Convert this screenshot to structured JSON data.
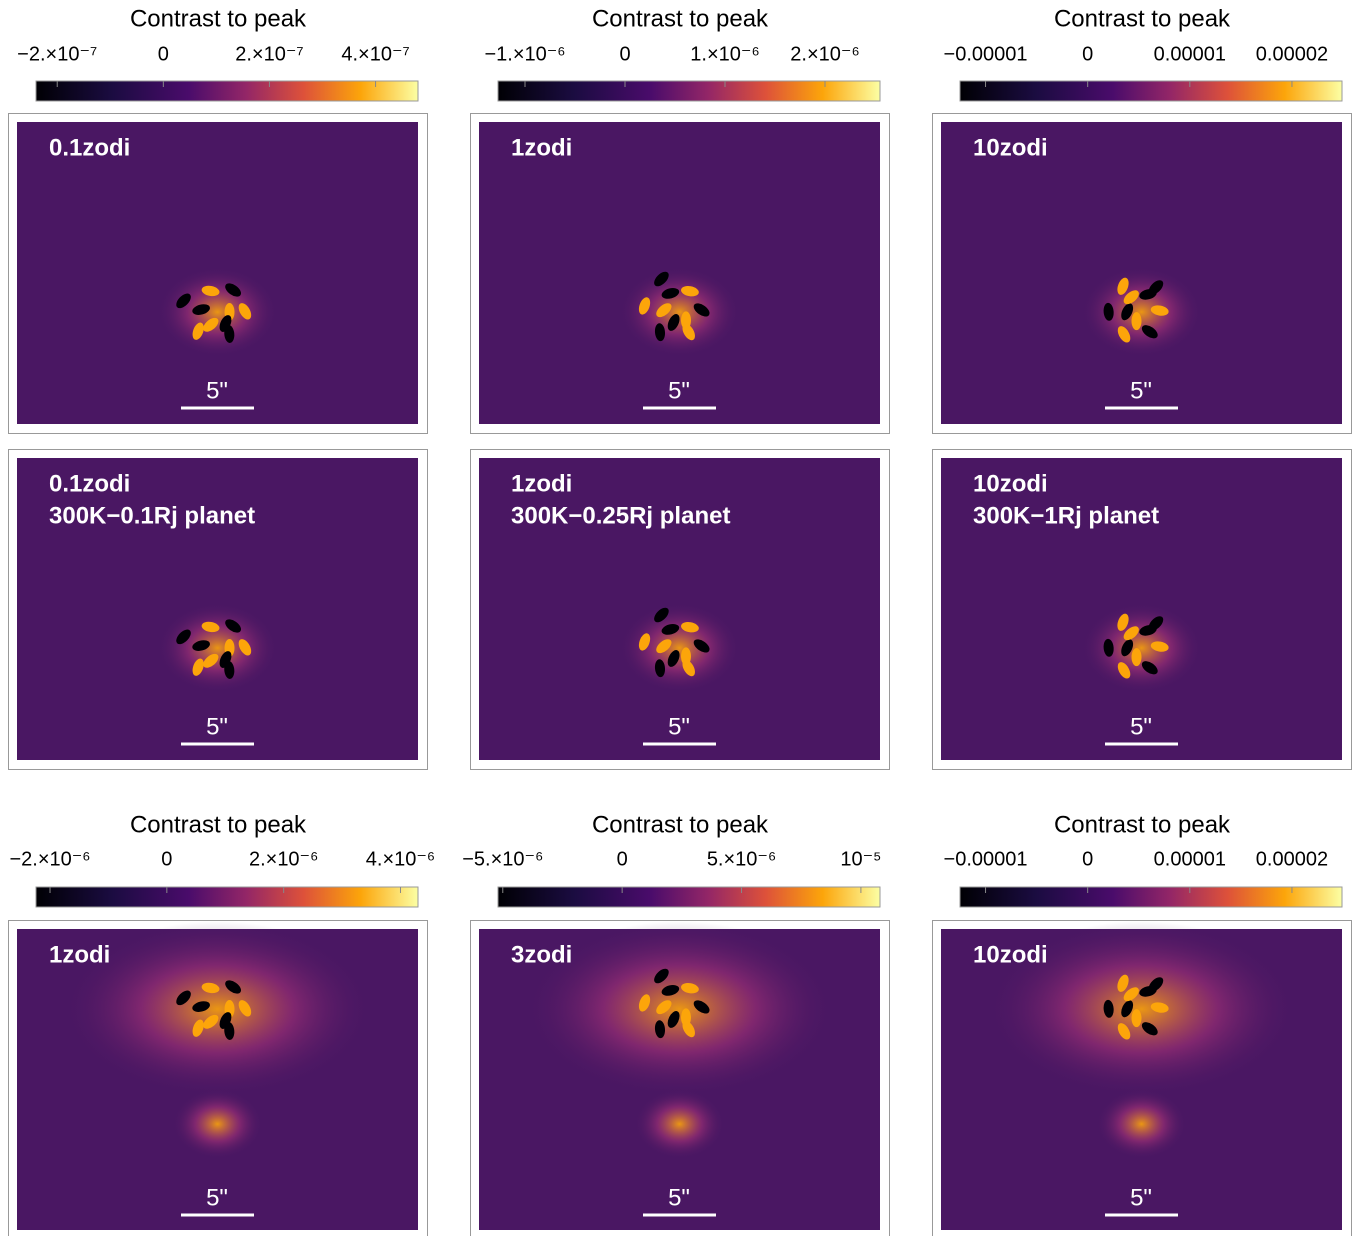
{
  "colorbars": [
    {
      "title": "Contrast to peak",
      "range": [
        -2.4e-07,
        4.8e-07
      ],
      "ticks": [
        {
          "value": -2e-07,
          "label": "−2.×10⁻⁷"
        },
        0,
        {
          "value": 2e-07,
          "label": "2.×10⁻⁷"
        },
        {
          "value": 4e-07,
          "label": "4.×10⁻⁷"
        }
      ]
    },
    {
      "title": "Contrast to peak",
      "range": [
        -1.27e-06,
        2.55e-06
      ],
      "ticks": [
        {
          "value": -1e-06,
          "label": "−1.×10⁻⁶"
        },
        0,
        {
          "value": 1e-06,
          "label": "1.×10⁻⁶"
        },
        {
          "value": 2e-06,
          "label": "2.×10⁻⁶"
        }
      ]
    },
    {
      "title": "Contrast to peak",
      "range": [
        -1.25e-05,
        2.49e-05
      ],
      "ticks": [
        {
          "value": -1e-05,
          "label": "−0.00001"
        },
        0,
        {
          "value": 1e-05,
          "label": "0.00001"
        },
        {
          "value": 2e-05,
          "label": "0.00002"
        }
      ]
    },
    {
      "title": "Contrast to peak",
      "range": [
        -2.24e-06,
        4.3e-06
      ],
      "ticks": [
        {
          "value": -2e-06,
          "label": "−2.×10⁻⁶"
        },
        0,
        {
          "value": 2e-06,
          "label": "2.×10⁻⁶"
        },
        {
          "value": 4e-06,
          "label": "4.×10⁻⁶"
        }
      ]
    },
    {
      "title": "Contrast to peak",
      "range": [
        -5.2e-06,
        1.08e-05
      ],
      "ticks": [
        {
          "value": -5e-06,
          "label": "−5.×10⁻⁶"
        },
        0,
        {
          "value": 5e-06,
          "label": "5.×10⁻⁶"
        },
        {
          "value": 1e-05,
          "label": "10⁻⁵"
        }
      ]
    },
    {
      "title": "Contrast to peak",
      "range": [
        -1.25e-05,
        2.49e-05
      ],
      "ticks": [
        {
          "value": -1e-05,
          "label": "−0.00001"
        },
        0,
        {
          "value": 1e-05,
          "label": "0.00001"
        },
        {
          "value": 2e-05,
          "label": "0.00002"
        }
      ]
    }
  ],
  "panels": [
    {
      "lines": [
        "0.1zodi"
      ],
      "scale_label": "5\""
    },
    {
      "lines": [
        "1zodi"
      ],
      "scale_label": "5\""
    },
    {
      "lines": [
        "10zodi"
      ],
      "scale_label": "5\""
    },
    {
      "lines": [
        "0.1zodi",
        "300K−0.1Rj planet"
      ],
      "scale_label": "5\""
    },
    {
      "lines": [
        "1zodi",
        "300K−0.25Rj planet"
      ],
      "scale_label": "5\""
    },
    {
      "lines": [
        "10zodi",
        "300K−1Rj planet"
      ],
      "scale_label": "5\""
    },
    {
      "lines": [
        "1zodi"
      ],
      "scale_label": "5\""
    },
    {
      "lines": [
        "3zodi"
      ],
      "scale_label": "5\""
    },
    {
      "lines": [
        "10zodi"
      ],
      "scale_label": "5\""
    }
  ]
}
